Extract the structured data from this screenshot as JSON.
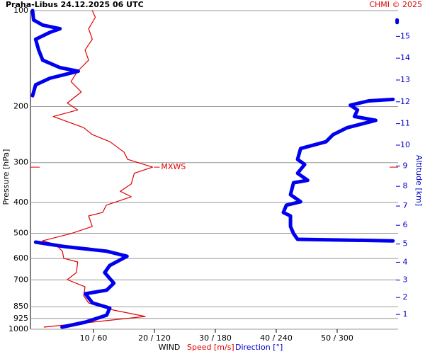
{
  "chart_data": {
    "type": "sounding-wind",
    "title": "Praha-Libus   24.12.2025 06 UTC",
    "credit": "CHMI © 2025",
    "ylabel": "Pressure [hPa]",
    "y2label": "Altitude [km]",
    "xlabel": "WIND",
    "annotation": "MXWS",
    "y_log": true,
    "ylim": [
      1000,
      100
    ],
    "yticks": [
      100,
      200,
      300,
      400,
      500,
      600,
      700,
      850,
      925,
      1000
    ],
    "y2lim": [
      0,
      16
    ],
    "y2ticks": [
      1,
      2,
      3,
      4,
      5,
      6,
      7,
      8,
      9,
      10,
      11,
      12,
      13,
      14,
      15
    ],
    "xlim": [
      0,
      60
    ],
    "x2lim": [
      0,
      360
    ],
    "xticks": [
      {
        "value": 10,
        "label": "10 / 60"
      },
      {
        "value": 20,
        "label": "20 / 120"
      },
      {
        "value": 30,
        "label": "30 / 180"
      },
      {
        "value": 40,
        "label": "40 / 240"
      },
      {
        "value": 50,
        "label": "50 / 300"
      }
    ],
    "series": [
      {
        "name": "Speed [m/s]",
        "color": "#e00000",
        "axis": "x",
        "pressure": [
          985,
          950,
          912,
          871,
          827,
          786,
          736,
          699,
          664,
          615,
          599,
          569,
          541,
          528,
          501,
          476,
          441,
          430,
          408,
          384,
          369,
          350,
          324,
          310,
          293,
          278,
          258,
          245,
          233,
          215,
          205,
          195,
          180,
          167,
          155,
          143,
          133,
          123,
          114,
          105,
          100
        ],
        "values": [
          1.9,
          9.8,
          18.5,
          13.3,
          9.2,
          8.4,
          8.6,
          5.7,
          7.2,
          7.4,
          5.1,
          4.9,
          3.7,
          1.6,
          6.3,
          9.8,
          9.2,
          11.5,
          12.1,
          16.2,
          14.4,
          16.2,
          16.7,
          19.7,
          15.6,
          15.0,
          12.7,
          9.8,
          8.4,
          3.4,
          7.4,
          5.7,
          8.0,
          6.3,
          7.4,
          9.2,
          8.6,
          9.8,
          9.2,
          10.3,
          9.8
        ]
      },
      {
        "name": "Direction [°]",
        "color": "#0000ee",
        "axis": "x2",
        "pressure": [
          985,
          950,
          903,
          858,
          827,
          774,
          754,
          717,
          664,
          631,
          590,
          569,
          550,
          533,
          null,
          528,
          522,
          501,
          476,
          441,
          430,
          408,
          398,
          378,
          347,
          341,
          324,
          304,
          293,
          271,
          258,
          245,
          233,
          221,
          215,
          205,
          198,
          192,
          190,
          null,
          185,
          171,
          163,
          155,
          151,
          143,
          133,
          123,
          117,
          114,
          111,
          107,
          100,
          null,
          107,
          109
        ],
        "values": [
          29,
          52,
          73,
          76,
          59,
          52,
          73,
          80,
          71,
          76,
          93,
          73,
          31,
          3,
          null,
          355,
          261,
          257,
          254,
          254,
          247,
          250,
          264,
          254,
          257,
          271,
          261,
          268,
          261,
          264,
          289,
          296,
          310,
          338,
          317,
          320,
          313,
          331,
          355,
          null,
          0,
          3,
          17,
          45,
          27,
          10,
          6,
          3,
          17,
          27,
          10,
          1,
          0,
          null,
          359,
          359
        ]
      }
    ]
  }
}
